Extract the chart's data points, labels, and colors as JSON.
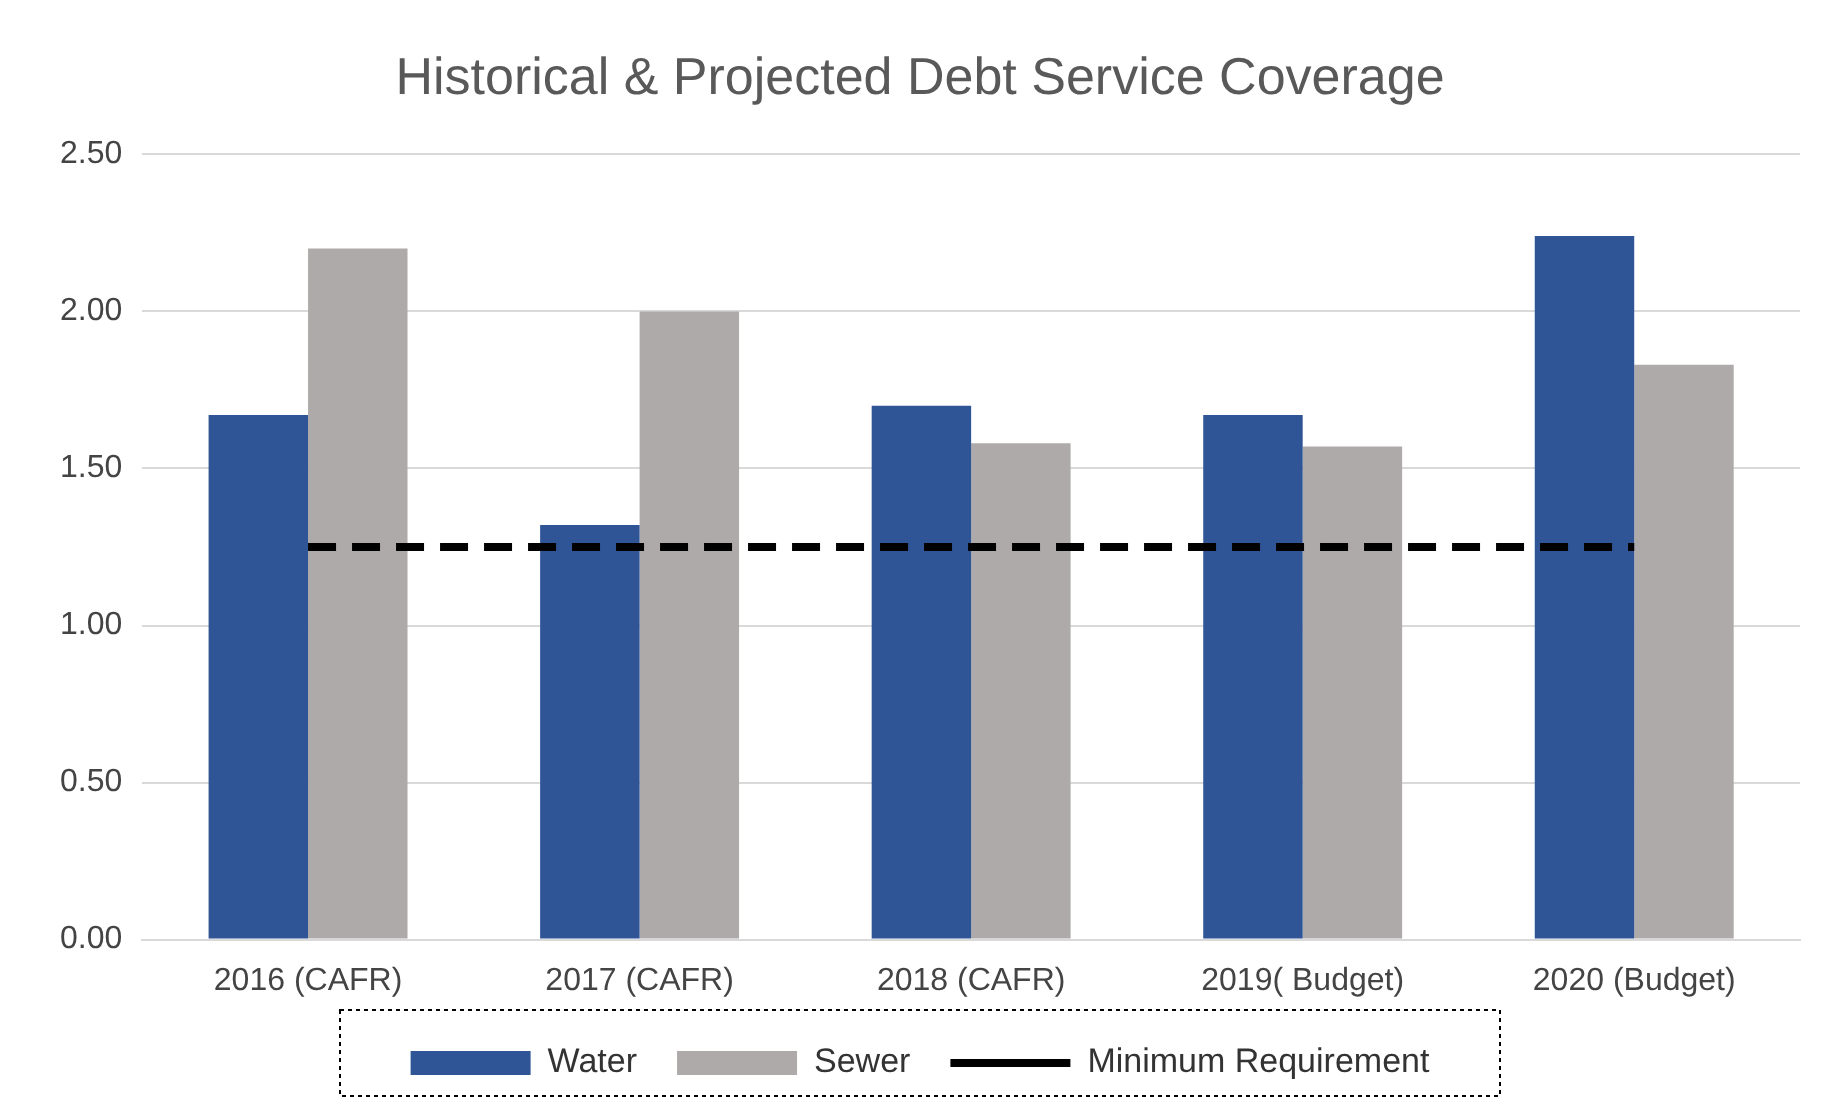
{
  "chart_data": {
    "type": "bar",
    "title": "Historical & Projected Debt Service Coverage",
    "categories": [
      "2016 (CAFR)",
      "2017 (CAFR)",
      "2018 (CAFR)",
      "2019( Budget)",
      "2020 (Budget)"
    ],
    "series": [
      {
        "name": "Water",
        "color": "#2f5597",
        "values": [
          1.67,
          1.32,
          1.7,
          1.67,
          2.24
        ]
      },
      {
        "name": "Sewer",
        "color": "#aeaaaa",
        "values": [
          2.2,
          2.0,
          1.58,
          1.57,
          1.83
        ]
      },
      {
        "name": "Minimum Requirement",
        "type": "line",
        "color": "#000000",
        "line_style": "dashed",
        "values": [
          1.25,
          1.25,
          1.25,
          1.25,
          1.25
        ]
      }
    ],
    "ylim": [
      0,
      2.5
    ],
    "yticks": [
      {
        "value": 0,
        "label": "0.00"
      },
      {
        "value": 0.5,
        "label": "0.50"
      },
      {
        "value": 1,
        "label": "1.00"
      },
      {
        "value": 1.5,
        "label": "1.50"
      },
      {
        "value": 2,
        "label": "2.00"
      },
      {
        "value": 2.5,
        "label": "2.50"
      }
    ],
    "grid": "y",
    "legend": "bottom",
    "marker": "none"
  }
}
